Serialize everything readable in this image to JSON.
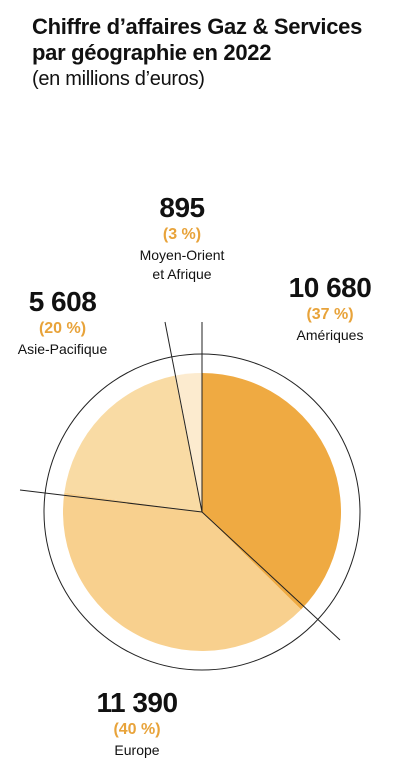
{
  "title": "Chiffre d’affaires Gaz & Services par géographie en 2022",
  "subtitle": "(en millions d’euros)",
  "colors": {
    "percent": "#e8a33a",
    "leader": "#222222",
    "ring": "#222222"
  },
  "chart_data": {
    "type": "pie",
    "title": "Chiffre d’affaires Gaz & Services par géographie en 2022",
    "subtitle": "(en millions d’euros)",
    "slices": [
      {
        "name": "Amériques",
        "value": 10680,
        "value_label": "10 680",
        "percent_label": "(37 %)",
        "color": "#efaa42"
      },
      {
        "name": "Europe",
        "value": 11390,
        "value_label": "11 390",
        "percent_label": "(40 %)",
        "color": "#f8d08e"
      },
      {
        "name": "Asie-Pacifique",
        "value": 5608,
        "value_label": "5 608",
        "percent_label": "(20 %)",
        "color": "#f9dba4"
      },
      {
        "name": "Moyen-Orient et Afrique",
        "value": 895,
        "value_label": "895",
        "percent_label": "(3 %)",
        "color": "#fcebcf"
      }
    ]
  }
}
